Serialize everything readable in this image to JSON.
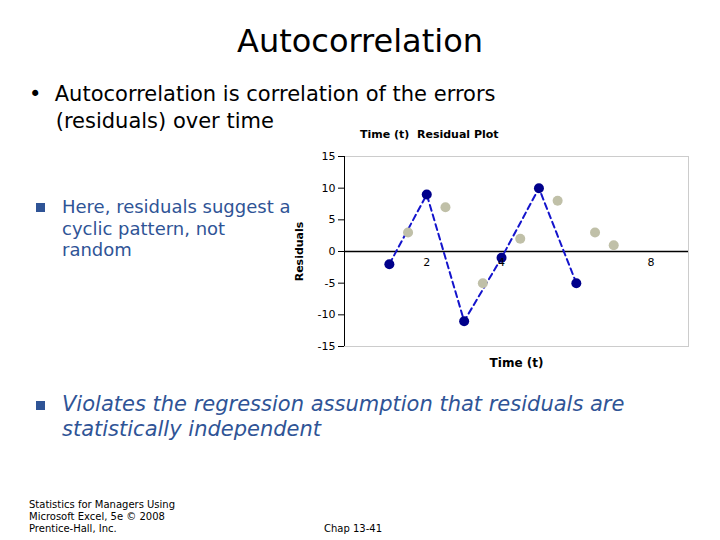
{
  "chart_data": {
    "type": "scatter",
    "title": "Autocorrelation",
    "subtitle": "Time (t)  Residual Plot",
    "xlabel": "Time (t)",
    "ylabel": "Residuals",
    "xlim": [
      -0.2,
      9
    ],
    "ylim": [
      -15,
      15
    ],
    "xticks": [
      2,
      4,
      8
    ],
    "yticks": [
      -15,
      -10,
      -5,
      0,
      5,
      10,
      15
    ],
    "series": [
      {
        "type": "line",
        "line_style": "dashed",
        "color": "#1414CC",
        "x": [
          1,
          2,
          3,
          4,
          5,
          6
        ],
        "values": [
          -2,
          9,
          -11,
          -1,
          10,
          -5
        ]
      },
      {
        "type": "scatter",
        "marker": "circle",
        "color": "#C0C0A8",
        "x": [
          1.5,
          2.5,
          3.5,
          4.5,
          5.5,
          6.5,
          7.0
        ],
        "values": [
          3,
          7,
          -5,
          2,
          8,
          3,
          1
        ]
      },
      {
        "type": "scatter",
        "marker": "circle",
        "color": "#00008B",
        "x": [
          1,
          2,
          3,
          4,
          5,
          6
        ],
        "values": [
          -2,
          9,
          -11,
          -1,
          10,
          -5
        ]
      }
    ],
    "annotations": [
      {
        "text": "•  Autocorrelation is correlation of the errors"
      },
      {
        "text": "    (residuals) over time"
      },
      {
        "text": "Here, residuals suggest a\ncyclic pattern, not\nrandom",
        "color": "#2F5496"
      },
      {
        "text": "Violates the regression assumption that residuals are\nstatistically independent",
        "color": "#2F5496"
      },
      {
        "text": "Statistics for Managers Using\nMicrosoft Excel, 5e © 2008\nPrentice-Hall, Inc."
      },
      {
        "text": "Chap 13-41"
      }
    ]
  }
}
